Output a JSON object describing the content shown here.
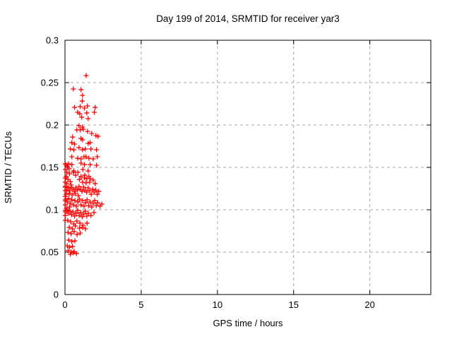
{
  "figure": {
    "background": "#ffffff",
    "frame_color": "#000000",
    "grid_color": "#a6a6a6",
    "text_color": "#000000"
  },
  "chart_data": {
    "type": "scatter",
    "title": "Day 199 of 2014, SRMTID for receiver yar3",
    "xlabel": "GPS time / hours",
    "ylabel": "SRMTID / TECUs",
    "xlim": [
      0,
      24
    ],
    "ylim": [
      0,
      0.3
    ],
    "xticks": [
      0,
      5,
      10,
      15,
      20
    ],
    "xtick_labels": [
      "0",
      "5",
      "10",
      "15",
      "20"
    ],
    "yticks": [
      0,
      0.05,
      0.1,
      0.15,
      0.2,
      0.25,
      0.3
    ],
    "ytick_labels": [
      "0",
      "0.05",
      "0.1",
      "0.15",
      "0.2",
      "0.25",
      "0.3"
    ],
    "grid": true,
    "legend": "none",
    "marker": "plus",
    "marker_color": "#ff0000",
    "series_name": "SRMTID",
    "points": [
      [
        1.39,
        0.2583
      ],
      [
        0.55,
        0.2425
      ],
      [
        1.05,
        0.2417
      ],
      [
        1.15,
        0.235
      ],
      [
        1.13,
        0.2283
      ],
      [
        1.48,
        0.2225
      ],
      [
        0.63,
        0.2208
      ],
      [
        1.0,
        0.2217
      ],
      [
        1.28,
        0.22
      ],
      [
        1.98,
        0.2208
      ],
      [
        0.83,
        0.215
      ],
      [
        0.97,
        0.2133
      ],
      [
        1.43,
        0.2142
      ],
      [
        1.93,
        0.215
      ],
      [
        1.1,
        0.2092
      ],
      [
        1.52,
        0.2075
      ],
      [
        0.92,
        0.1992
      ],
      [
        1.15,
        0.1975
      ],
      [
        0.78,
        0.1942
      ],
      [
        1.0,
        0.1942
      ],
      [
        1.2,
        0.195
      ],
      [
        1.48,
        0.1925
      ],
      [
        1.75,
        0.19
      ],
      [
        2.03,
        0.1875
      ],
      [
        2.17,
        0.1867
      ],
      [
        0.5,
        0.1858
      ],
      [
        1.05,
        0.1842
      ],
      [
        1.15,
        0.1825
      ],
      [
        0.45,
        0.1792
      ],
      [
        0.63,
        0.1775
      ],
      [
        1.52,
        0.1783
      ],
      [
        1.65,
        0.1792
      ],
      [
        0.35,
        0.1717
      ],
      [
        0.58,
        0.1708
      ],
      [
        0.92,
        0.1733
      ],
      [
        1.15,
        0.1708
      ],
      [
        1.33,
        0.1717
      ],
      [
        1.7,
        0.1717
      ],
      [
        2.07,
        0.1708
      ],
      [
        0.45,
        0.1625
      ],
      [
        0.83,
        0.1608
      ],
      [
        1.05,
        0.16
      ],
      [
        1.25,
        0.1625
      ],
      [
        1.38,
        0.1625
      ],
      [
        1.57,
        0.1608
      ],
      [
        1.85,
        0.16
      ],
      [
        2.12,
        0.1625
      ],
      [
        0.22,
        0.1542
      ],
      [
        0.45,
        0.1533
      ],
      [
        1.05,
        0.155
      ],
      [
        1.28,
        0.1533
      ],
      [
        1.65,
        0.1533
      ],
      [
        2.07,
        0.1525
      ],
      [
        0.27,
        0.1483
      ],
      [
        0.58,
        0.1458
      ],
      [
        1.18,
        0.1475
      ],
      [
        1.52,
        0.1458
      ],
      [
        0.08,
        0.1525
      ],
      [
        0.17,
        0.1508
      ],
      [
        0.12,
        0.1442
      ],
      [
        0.3,
        0.1425
      ],
      [
        0.08,
        0.1392
      ],
      [
        0.2,
        0.1358
      ],
      [
        0.35,
        0.1333
      ],
      [
        0.12,
        0.1308
      ],
      [
        0.4,
        0.1292
      ],
      [
        0.55,
        0.1442
      ],
      [
        0.7,
        0.1408
      ],
      [
        0.85,
        0.1442
      ],
      [
        1.28,
        0.1375
      ],
      [
        1.43,
        0.1367
      ],
      [
        1.65,
        0.1367
      ],
      [
        1.85,
        0.135
      ],
      [
        1.15,
        0.1325
      ],
      [
        1.38,
        0.1317
      ],
      [
        1.62,
        0.1325
      ],
      [
        1.98,
        0.1308
      ],
      [
        1.05,
        0.1392
      ],
      [
        1.3,
        0.1408
      ],
      [
        1.57,
        0.1392
      ],
      [
        0.95,
        0.1358
      ],
      [
        0.03,
        0.1267
      ],
      [
        0.12,
        0.1233
      ],
      [
        0.22,
        0.1258
      ],
      [
        0.32,
        0.1225
      ],
      [
        0.42,
        0.1267
      ],
      [
        0.52,
        0.1242
      ],
      [
        0.62,
        0.1217
      ],
      [
        0.72,
        0.1258
      ],
      [
        0.82,
        0.1233
      ],
      [
        0.92,
        0.1275
      ],
      [
        1.02,
        0.1242
      ],
      [
        1.12,
        0.1217
      ],
      [
        1.22,
        0.1267
      ],
      [
        1.32,
        0.1233
      ],
      [
        1.42,
        0.1208
      ],
      [
        1.52,
        0.1258
      ],
      [
        1.62,
        0.1225
      ],
      [
        1.72,
        0.1183
      ],
      [
        1.82,
        0.1242
      ],
      [
        1.92,
        0.1208
      ],
      [
        2.02,
        0.1233
      ],
      [
        2.12,
        0.1183
      ],
      [
        2.22,
        0.1217
      ],
      [
        0.07,
        0.1183
      ],
      [
        0.27,
        0.1192
      ],
      [
        0.47,
        0.1175
      ],
      [
        0.67,
        0.1192
      ],
      [
        0.87,
        0.1167
      ],
      [
        0.05,
        0.1125
      ],
      [
        0.15,
        0.1092
      ],
      [
        0.25,
        0.1133
      ],
      [
        0.35,
        0.1075
      ],
      [
        0.45,
        0.1117
      ],
      [
        0.55,
        0.1058
      ],
      [
        0.65,
        0.1108
      ],
      [
        0.75,
        0.1042
      ],
      [
        0.85,
        0.1092
      ],
      [
        0.95,
        0.1125
      ],
      [
        1.05,
        0.1058
      ],
      [
        1.15,
        0.1108
      ],
      [
        1.25,
        0.1042
      ],
      [
        1.35,
        0.1083
      ],
      [
        1.45,
        0.1117
      ],
      [
        1.55,
        0.105
      ],
      [
        1.65,
        0.1092
      ],
      [
        1.75,
        0.1033
      ],
      [
        1.85,
        0.1075
      ],
      [
        1.95,
        0.1108
      ],
      [
        2.05,
        0.105
      ],
      [
        2.15,
        0.1083
      ],
      [
        2.3,
        0.1042
      ],
      [
        2.42,
        0.1067
      ],
      [
        0.1,
        0.1017
      ],
      [
        0.3,
        0.1033
      ],
      [
        0.03,
        0.0975
      ],
      [
        0.13,
        0.0992
      ],
      [
        0.23,
        0.0958
      ],
      [
        0.33,
        0.0983
      ],
      [
        0.43,
        0.0942
      ],
      [
        0.53,
        0.0975
      ],
      [
        0.63,
        0.0925
      ],
      [
        0.73,
        0.0958
      ],
      [
        0.83,
        0.0992
      ],
      [
        0.93,
        0.0933
      ],
      [
        1.03,
        0.0967
      ],
      [
        1.13,
        0.0917
      ],
      [
        1.23,
        0.095
      ],
      [
        1.33,
        0.0983
      ],
      [
        1.43,
        0.0925
      ],
      [
        1.53,
        0.0958
      ],
      [
        1.7,
        0.0933
      ],
      [
        1.9,
        0.0967
      ],
      [
        0.18,
        0.0875
      ],
      [
        0.38,
        0.0858
      ],
      [
        0.58,
        0.0833
      ],
      [
        0.78,
        0.0867
      ],
      [
        0.98,
        0.0842
      ],
      [
        1.18,
        0.0817
      ],
      [
        1.45,
        0.0842
      ],
      [
        0.28,
        0.0792
      ],
      [
        0.48,
        0.0775
      ],
      [
        0.68,
        0.0808
      ],
      [
        0.95,
        0.0783
      ],
      [
        1.15,
        0.0792
      ],
      [
        1.35,
        0.0775
      ],
      [
        0.2,
        0.0733
      ],
      [
        0.4,
        0.0717
      ],
      [
        0.6,
        0.0742
      ],
      [
        0.8,
        0.0708
      ],
      [
        1.0,
        0.0725
      ],
      [
        0.25,
        0.0642
      ],
      [
        0.45,
        0.0625
      ],
      [
        0.65,
        0.0633
      ],
      [
        0.15,
        0.0575
      ],
      [
        0.3,
        0.0558
      ],
      [
        0.5,
        0.0567
      ],
      [
        0.2,
        0.0517
      ],
      [
        0.4,
        0.05
      ],
      [
        0.6,
        0.0508
      ],
      [
        0.75,
        0.0483
      ],
      [
        0.35,
        0.0475
      ],
      [
        0.55,
        0.0492
      ],
      [
        0.02,
        0.1542
      ],
      [
        0.02,
        0.1475
      ],
      [
        0.02,
        0.1375
      ],
      [
        0.02,
        0.1325
      ],
      [
        0.02,
        0.1275
      ],
      [
        0.02,
        0.1225
      ],
      [
        0.02,
        0.1158
      ],
      [
        0.02,
        0.1108
      ],
      [
        0.02,
        0.1058
      ],
      [
        0.02,
        0.0992
      ],
      [
        0.02,
        0.0933
      ],
      [
        0.02,
        0.0875
      ]
    ]
  }
}
